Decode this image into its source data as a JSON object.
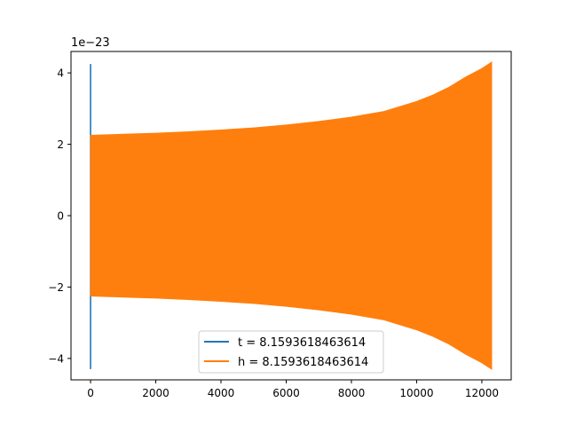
{
  "chart_data": {
    "type": "line",
    "title": "",
    "xlabel": "",
    "ylabel": "",
    "offset_text": "1e−23",
    "xlim": [
      -600,
      12900
    ],
    "ylim": [
      -4.6,
      4.6
    ],
    "xticks": [
      0,
      2000,
      4000,
      6000,
      8000,
      10000,
      12000
    ],
    "xtick_labels": [
      "0",
      "2000",
      "4000",
      "6000",
      "8000",
      "10000",
      "12000"
    ],
    "yticks": [
      -4,
      -2,
      0,
      2,
      4
    ],
    "ytick_labels": [
      "−4",
      "−2",
      "0",
      "2",
      "4"
    ],
    "grid": false,
    "legend_position": "lower-center",
    "series": [
      {
        "name": "t = 8.1593618463614",
        "color": "#1f77b4",
        "segments": [
          [
            0,
            -4.3,
            4.25
          ]
        ]
      },
      {
        "name": "h = 8.1593618463614",
        "color": "#ff7f0e",
        "envelope": {
          "x": [
            0,
            1000,
            2000,
            3000,
            4000,
            5000,
            6000,
            7000,
            8000,
            9000,
            10000,
            10500,
            11000,
            11500,
            12000,
            12300
          ],
          "upper": [
            2.25,
            2.28,
            2.31,
            2.35,
            2.4,
            2.46,
            2.54,
            2.64,
            2.76,
            2.92,
            3.2,
            3.38,
            3.6,
            3.88,
            4.12,
            4.3
          ],
          "lower": [
            -2.25,
            -2.28,
            -2.31,
            -2.35,
            -2.4,
            -2.46,
            -2.54,
            -2.64,
            -2.76,
            -2.92,
            -3.2,
            -3.38,
            -3.6,
            -3.88,
            -4.12,
            -4.3
          ]
        }
      }
    ]
  }
}
